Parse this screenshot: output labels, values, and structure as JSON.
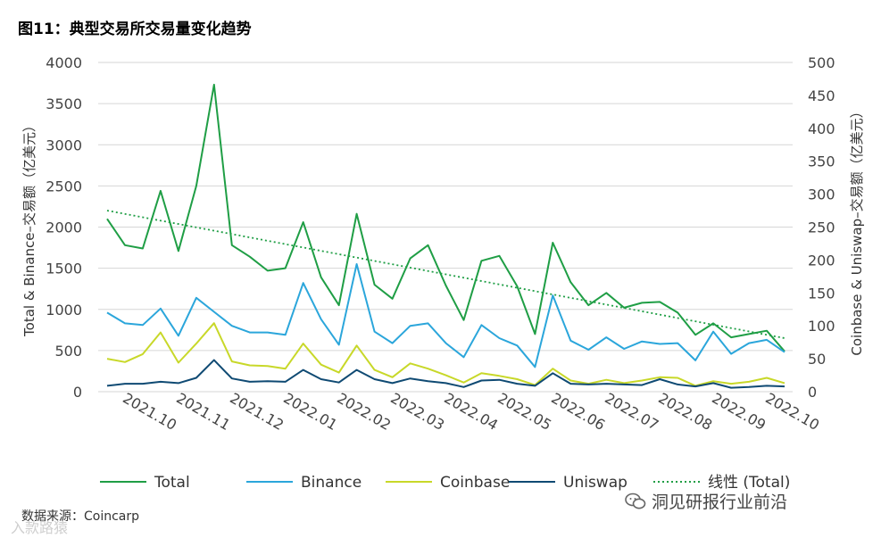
{
  "title": "图11：典型交易所交易量变化趋势",
  "source": "数据来源：Coincarp",
  "watermark": "洞见研报行业前沿",
  "watermark2": "入款路猿",
  "chart_data": {
    "type": "line",
    "title": "图11：典型交易所交易量变化趋势",
    "ylabel_left": "Total & Binance–交易额（亿美元）",
    "ylabel_right": "Coinbase & Uniswap–交易额（亿美元）",
    "ylim_left": [
      0,
      4000
    ],
    "ylim_right": [
      0,
      500
    ],
    "yticks_left": [
      "0",
      "500",
      "1000",
      "1500",
      "2000",
      "2500",
      "3000",
      "3500",
      "4000"
    ],
    "yticks_right": [
      "0",
      "50",
      "100",
      "150",
      "200",
      "250",
      "300",
      "350",
      "400",
      "450",
      "500"
    ],
    "xtick_labels": [
      "2021.10",
      "2021.11",
      "2021.12",
      "2022.01",
      "2022.02",
      "2022.03",
      "2022.04",
      "2022.05",
      "2022.06",
      "2022.07",
      "2022.08",
      "2022.09",
      "2022.10"
    ],
    "legend_position": "bottom",
    "colors": {
      "Total": "#1f9e45",
      "Binance": "#2ba6db",
      "Coinbase": "#c8d829",
      "Uniswap": "#0f4a73",
      "Trend": "#1f9e45"
    },
    "series": [
      {
        "name": "Total",
        "axis": "left",
        "values": [
          2100,
          1780,
          1740,
          2440,
          1710,
          2500,
          3730,
          1780,
          1640,
          1470,
          1500,
          2060,
          1390,
          1050,
          2160,
          1300,
          1130,
          1620,
          1780,
          1290,
          870,
          1590,
          1650,
          1280,
          700,
          1810,
          1330,
          1050,
          1200,
          1020,
          1080,
          1090,
          960,
          690,
          830,
          660,
          700,
          740,
          490
        ]
      },
      {
        "name": "Binance",
        "axis": "left",
        "values": [
          960,
          830,
          810,
          1010,
          680,
          1140,
          970,
          800,
          720,
          720,
          690,
          1320,
          880,
          570,
          1550,
          730,
          590,
          800,
          830,
          590,
          420,
          810,
          650,
          560,
          300,
          1170,
          620,
          510,
          660,
          520,
          610,
          580,
          590,
          380,
          730,
          460,
          590,
          630,
          480
        ]
      },
      {
        "name": "Coinbase",
        "axis": "right",
        "values": [
          50,
          45,
          57,
          90,
          44,
          73,
          104,
          46,
          40,
          39,
          35,
          73,
          41,
          29,
          70,
          33,
          22,
          43,
          35,
          25,
          14,
          28,
          24,
          19,
          10,
          35,
          17,
          12,
          18,
          13,
          17,
          22,
          21,
          9,
          16,
          12,
          15,
          21,
          13
        ]
      },
      {
        "name": "Uniswap",
        "axis": "right",
        "values": [
          9,
          12,
          12,
          15,
          13,
          21,
          48,
          20,
          15,
          16,
          15,
          33,
          19,
          14,
          33,
          19,
          13,
          20,
          16,
          13,
          7,
          17,
          18,
          12,
          9,
          28,
          12,
          11,
          12,
          11,
          10,
          19,
          11,
          8,
          13,
          6,
          7,
          9,
          8
        ]
      },
      {
        "name": "线性 (Total)",
        "axis": "left",
        "style": "dotted",
        "values": [
          2200,
          650
        ]
      }
    ]
  }
}
